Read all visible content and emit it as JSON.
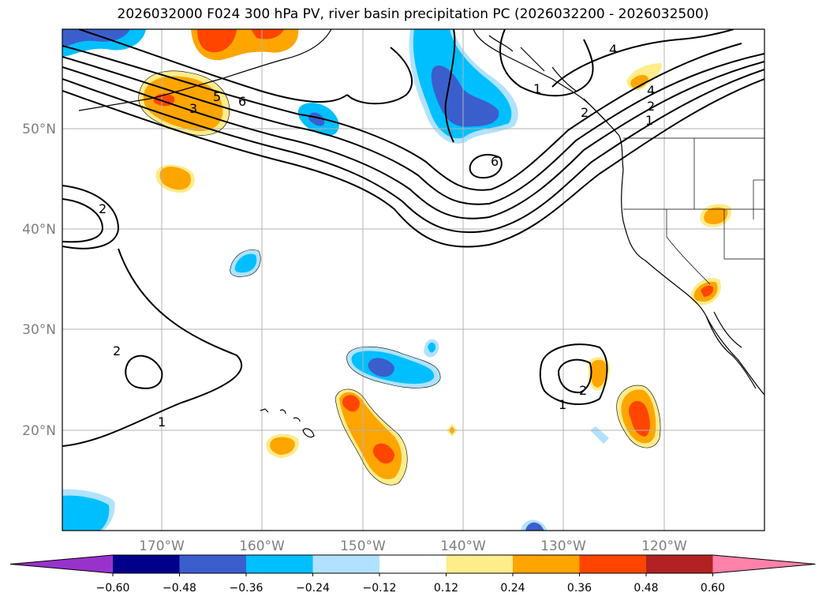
{
  "title": "2026032000 F024 300 hPa PV, river basin precipitation PC (2026032200 - 2026032500)",
  "lat_labels": [
    "50°N",
    "40°N",
    "30°N",
    "20°N"
  ],
  "lon_labels": [
    "170°W",
    "160°W",
    "150°W",
    "140°W",
    "130°W",
    "120°W"
  ],
  "colorbar": {
    "ticks": [
      "−0.60",
      "−0.48",
      "−0.36",
      "−0.24",
      "−0.12",
      "0.12",
      "0.24",
      "0.36",
      "0.48",
      "0.60"
    ],
    "colors": [
      "#9932cc",
      "#00008b",
      "#3a5fcd",
      "#00bfff",
      "#b0e2ff",
      "#ffffff",
      "#ffec8b",
      "#ffa500",
      "#ff4500",
      "#b22222",
      "#ff82ab"
    ]
  },
  "contour_labels": [
    "1",
    "2",
    "3",
    "4",
    "5",
    "6",
    "1",
    "2",
    "4",
    "6",
    "2",
    "1",
    "2",
    "1",
    "2"
  ],
  "palette": {
    "neg_strong": "#3a5fcd",
    "neg_mid": "#00bfff",
    "neg_weak": "#b0e2ff",
    "pos_weak": "#ffec8b",
    "pos_mid": "#ffa500",
    "pos_strong": "#ff4500",
    "pos_max": "#b22222"
  }
}
